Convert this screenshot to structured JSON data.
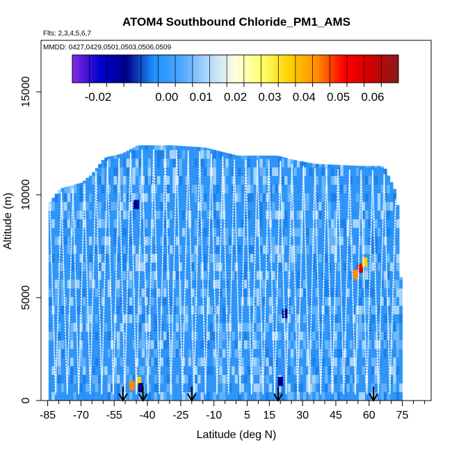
{
  "chart_data": {
    "type": "heatmap",
    "title": "ATOM4 Southbound Chloride_PM1_AMS",
    "flights_note": "Flts: 2,3,4,5,6,7",
    "dates_note": "MMDD: 0427,0429,0501,0503,0506,0509",
    "xlabel": "Latitude (deg N)",
    "ylabel": "Altitude (m)",
    "xlim": [
      -88,
      88
    ],
    "ylim": [
      0,
      17500
    ],
    "x_ticks": [
      -85,
      -70,
      -55,
      -40,
      -25,
      -10,
      5,
      15,
      30,
      45,
      60,
      75
    ],
    "x_minor_step": 5,
    "y_ticks": [
      0,
      5000,
      10000,
      15000
    ],
    "colorbar": {
      "range": [
        -0.0275,
        0.0675
      ],
      "ticks": [
        -0.02,
        0.0,
        0.01,
        0.02,
        0.03,
        0.04,
        0.05,
        0.06
      ],
      "tick_labels": [
        "-0.02",
        "0.00",
        "0.01",
        "0.02",
        "0.03",
        "0.04",
        "0.05",
        "0.06"
      ],
      "colors": [
        "#8a2be2",
        "#0000cd",
        "#00008b",
        "#1e90ff",
        "#4da6ff",
        "#b0d8ff",
        "#ffffe0",
        "#ffff66",
        "#ffd000",
        "#ff8c00",
        "#ff0000",
        "#cc0000",
        "#8b1a1a"
      ]
    },
    "background_color": "#2f95f8",
    "arrow_latitudes": [
      -51,
      -42,
      -20,
      19,
      62
    ],
    "hotspots": [
      {
        "lat": 56,
        "alt": 6200,
        "value": 0.06
      },
      {
        "lat": 54,
        "alt": 5900,
        "value": 0.045
      },
      {
        "lat": 58,
        "alt": 6500,
        "value": 0.035
      },
      {
        "lat": -47,
        "alt": 500,
        "value": 0.04
      },
      {
        "lat": -44,
        "alt": 700,
        "value": 0.035
      },
      {
        "lat": 22,
        "alt": 4000,
        "value": -0.012
      },
      {
        "lat": 20,
        "alt": 700,
        "value": -0.01
      },
      {
        "lat": -43,
        "alt": 400,
        "value": -0.015
      },
      {
        "lat": -45,
        "alt": 9300,
        "value": -0.012
      }
    ],
    "envelope": [
      {
        "lat": -85,
        "top": 9600
      },
      {
        "lat": -80,
        "top": 10300
      },
      {
        "lat": -70,
        "top": 10600
      },
      {
        "lat": -65,
        "top": 11100
      },
      {
        "lat": -60,
        "top": 11800
      },
      {
        "lat": -52,
        "top": 12000
      },
      {
        "lat": -45,
        "top": 12400
      },
      {
        "lat": -30,
        "top": 12400
      },
      {
        "lat": -15,
        "top": 12300
      },
      {
        "lat": 0,
        "top": 11900
      },
      {
        "lat": 18,
        "top": 11900
      },
      {
        "lat": 25,
        "top": 11700
      },
      {
        "lat": 35,
        "top": 11500
      },
      {
        "lat": 55,
        "top": 11400
      },
      {
        "lat": 66,
        "top": 11400
      },
      {
        "lat": 72,
        "top": 10000
      },
      {
        "lat": 74,
        "top": 5000
      }
    ]
  }
}
